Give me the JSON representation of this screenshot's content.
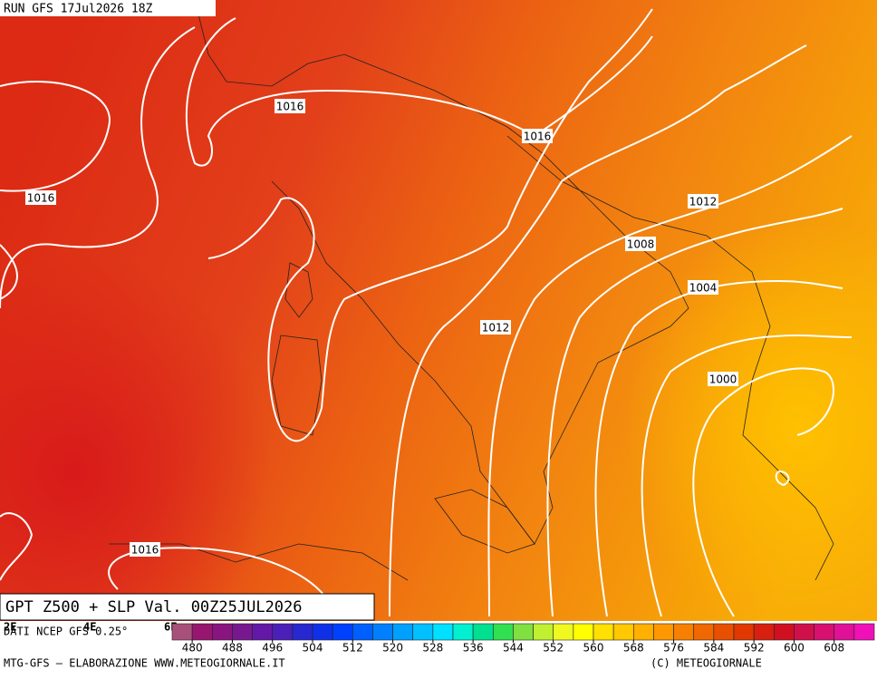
{
  "header": {
    "run": "RUN GFS 17Jul2026 18Z"
  },
  "isobars": [
    {
      "label": "1016"
    },
    {
      "label": "1016"
    },
    {
      "label": "1016"
    },
    {
      "label": "1012"
    },
    {
      "label": "1008"
    },
    {
      "label": "1004"
    },
    {
      "label": "1012"
    },
    {
      "label": "1000"
    },
    {
      "label": "1016"
    }
  ],
  "title": "GPT Z500 + SLP Val. 00Z25JUL2026",
  "source": "DATI NCEP GFS 0.25°",
  "lon_labels": [
    "2E",
    "4E",
    "6E"
  ],
  "colorbar": {
    "range": [
      476,
      616
    ],
    "ticks": [
      480,
      488,
      496,
      504,
      512,
      520,
      528,
      536,
      544,
      552,
      560,
      568,
      576,
      584,
      592,
      600,
      608
    ],
    "colors": [
      "#a8507a",
      "#961670",
      "#8a1480",
      "#781890",
      "#6418a8",
      "#4a20b8",
      "#2828d0",
      "#1030e8",
      "#0040ff",
      "#0060ff",
      "#0080ff",
      "#00a0ff",
      "#00c0ff",
      "#00e0ff",
      "#00f0d0",
      "#00e090",
      "#30e050",
      "#80e040",
      "#c0f030",
      "#f0f820",
      "#ffff00",
      "#ffe000",
      "#ffc800",
      "#ffb000",
      "#ff9800",
      "#f88000",
      "#f06800",
      "#e85000",
      "#e03800",
      "#d82010",
      "#d01020",
      "#d0104a",
      "#d81070",
      "#e01098",
      "#f010b8"
    ]
  },
  "footer": {
    "left": "MTG-GFS – ELABORAZIONE WWW.METEOGIORNALE.IT",
    "right": "(C) METEOGIORNALE"
  }
}
